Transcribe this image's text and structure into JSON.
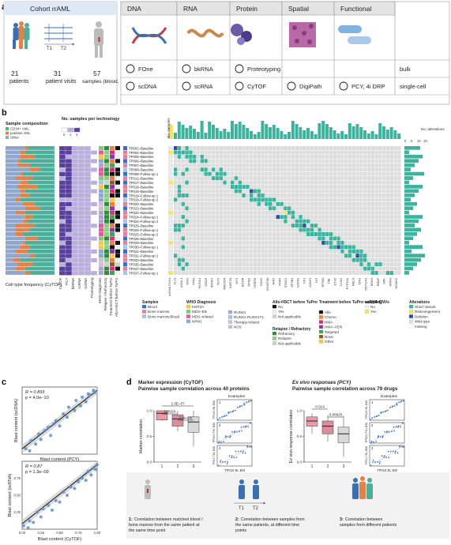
{
  "panels": {
    "a": "a",
    "b": "b",
    "c": "c",
    "d": "d"
  },
  "panel_a": {
    "cohort_title": "Cohort rrAML",
    "timepoints": [
      "T1",
      "T2"
    ],
    "stats": [
      {
        "value": "21",
        "label": "patients"
      },
      {
        "value": "31",
        "label": "patient visits"
      },
      {
        "value": "57",
        "label": "samples (blood, BM)"
      }
    ],
    "columns": [
      "DNA",
      "RNA",
      "Protein",
      "Spatial",
      "Functional"
    ],
    "bulk_row": [
      "FOne",
      "bkRNA",
      "Proteotyping"
    ],
    "bulk_label": "bulk",
    "sc_row": [
      "scDNA",
      "scRNA",
      "CyTOF",
      "DigiPath",
      "PCY, 4i DRP"
    ],
    "sc_label": "single-cell"
  },
  "panel_b": {
    "sample_comp_title": "Sample composition",
    "comp_legend": [
      {
        "label": "CD34+ AML",
        "color": "#4cae9b"
      },
      {
        "label": "putative AML",
        "color": "#e0834a"
      },
      {
        "label": "Other",
        "color": "#8fa6cf"
      }
    ],
    "nsamples_title": "No. samples per technology",
    "nsamples_scale": [
      "0",
      "1",
      "2"
    ],
    "cell_type_label": "Cell type frequency (CyTOF)",
    "tech_labels": [
      "CyTOF",
      "PCY",
      "bkRNA",
      "scRNA",
      "scDNA",
      "Proteotyping",
      "WHO Diagnosis",
      "Relapse / Refractory",
      "Treatment before TuPro",
      "Allo-HSCT before TuPro"
    ],
    "samples_axis": "No. samples",
    "alterations_axis": "No. alterations",
    "alt_ticks": [
      "0",
      "5",
      "10",
      "15"
    ],
    "rows": [
      "TP002–Baseline",
      "TP004–Baseline",
      "TP006–Baseline",
      "TP006–Baseline",
      "TP007–Baseline",
      "TP008–Baseline",
      "TP008–Follow-up 1",
      "TP012–Baseline",
      "TP017–Baseline",
      "TP018–Baseline",
      "TP019–Baseline",
      "TP019–Follow-up 1",
      "TP019–Follow-up 2",
      "TP020–Baseline",
      "TP023–Baseline",
      "TP024–Baseline",
      "TP024–Follow-up 1",
      "TP024–Follow-up 2",
      "TP025–Baseline",
      "TP025–Follow-up 1",
      "TP025–Follow-up 2",
      "TP028–Baseline",
      "TP029–Baseline",
      "TP030–Follow-up 1",
      "TP031–Baseline",
      "TP031–Follow-up 1",
      "TP033–Baseline",
      "TP035–Baseline",
      "TP037–Baseline",
      "TP037–Follow-up 1"
    ],
    "genes": [
      "FLT3",
      "ASXL1",
      "IDH2",
      "TP53",
      "NRAS",
      "RUNX1",
      "SRSF2",
      "TET2",
      "NPM1",
      "WT1",
      "MECOM",
      "KMT2A",
      "CBL",
      "PTPN11",
      "STAG2",
      "KIT",
      "BCOR",
      "EZH2",
      "IDH1",
      "U2AF1",
      "GATA2",
      "SF3B1",
      "CEBPA",
      "KRAS",
      "DNMT3A",
      "JAK2",
      "PHF6",
      "SMC3",
      "SETBP1",
      "ZRSR2",
      "NF1",
      "BCORL1",
      "ETV6",
      "CSF3R",
      "ATRX",
      "CALR",
      "KDM6A",
      "MPL",
      "EP300",
      "CREBBP",
      "ARID1A",
      "CUX1",
      "SMC1A",
      "RAD21",
      "NOTCH1",
      "PDGFRA",
      "MYC",
      "EGFR",
      "PIK3CA",
      "BRAF",
      "GNAS",
      "ABL1",
      "FBXW7",
      "HRAS",
      "STAT3",
      "RELN",
      "PTEN",
      "CHEK2",
      "NSD1",
      "KDM5C"
    ],
    "gene_label_sample": [
      "FLT3",
      "ASXL1",
      "IDH2",
      "TP53",
      "RUNX1",
      "NRAS",
      "SRSF2",
      "TET2",
      "MECOM",
      "KMT2A",
      "WT1",
      "BCOR",
      "NPM1",
      "CEBPA",
      "EZH2",
      "DNMT3A",
      "JAK2",
      "PHF6",
      "STAG2",
      "SF3B1",
      "GATA2",
      "NF1",
      "U2AF1",
      "KIT",
      "EP300",
      "CBL",
      "ETV6",
      "CUX1",
      "PTPN11",
      "RELN",
      "IDH1",
      "NOTCH1",
      "KRAS",
      "BRAF",
      "MPL",
      "HRAS",
      "KDM6C"
    ],
    "sc_cnv_label": "scDNA CNVs",
    "legends": [
      {
        "title": "Samples",
        "items": [
          {
            "label": "Blood",
            "color": "#3a6fc9"
          },
          {
            "label": "Bone marrow",
            "color": "#e3829b"
          },
          {
            "label": "Bone marrow,Blood",
            "color": "#a8c6e8"
          }
        ]
      },
      {
        "title": "WHO Diagnosis",
        "items": [
          {
            "label": "KMT2A",
            "color": "#f2c94c"
          },
          {
            "label": "MDS–EB",
            "color": "#7ec97a"
          },
          {
            "label": "MDS–related",
            "color": "#e15aa0"
          },
          {
            "label": "NPM1",
            "color": "#8aa8d8"
          }
        ]
      },
      {
        "title": "",
        "items": [
          {
            "label": "RUNX1",
            "color": "#b2a0d6"
          },
          {
            "label": "RUNX1-RUNX1T1",
            "color": "#9cc7e6"
          },
          {
            "label": "Therapy-related",
            "color": "#d9b8e0"
          },
          {
            "label": "NOS",
            "color": "#c3c3c3"
          }
        ]
      },
      {
        "title": "Allo-HSCT before TuPro",
        "items": [
          {
            "label": "No",
            "color": "#111111"
          },
          {
            "label": "Yes",
            "color": "#eeeeee"
          },
          {
            "label": "Not applicable",
            "color": "#cfcfcf"
          }
        ]
      },
      {
        "title": "Relapse / Refractory",
        "items": [
          {
            "label": "Refractory",
            "color": "#2f8a3a"
          },
          {
            "label": "Relapse",
            "color": "#8ccf7e"
          },
          {
            "label": "Not applicable",
            "color": "#cfcfcf"
          }
        ]
      },
      {
        "title": "Treatment before TuPro sampling",
        "items": [
          {
            "label": "Allo",
            "color": "#111111"
          },
          {
            "label": "Chemo",
            "color": "#e8843a"
          },
          {
            "label": "HMA",
            "color": "#d9307a"
          },
          {
            "label": "HMA–VEN",
            "color": "#7e3fa3"
          },
          {
            "label": "Targeted",
            "color": "#3aa655"
          },
          {
            "label": "None",
            "color": "#8b5a2b"
          },
          {
            "label": "Other",
            "color": "#f2c94c"
          }
        ]
      },
      {
        "title": "scDNA CNVs",
        "items": [
          {
            "label": "No",
            "color": "#eeeeee"
          },
          {
            "label": "Yes",
            "color": "#f2e66a"
          }
        ]
      },
      {
        "title": "Alterations",
        "items": [
          {
            "label": "Short Variant",
            "color": "#3db39e"
          },
          {
            "label": "Rearrangement",
            "color": "#f2e06a"
          },
          {
            "label": "Deletion",
            "color": "#2d4fa3"
          },
          {
            "label": "Wild-type",
            "color": "#dddddd"
          },
          {
            "label": "missing",
            "color": "#ffffff"
          }
        ]
      }
    ]
  },
  "panel_c": {
    "top": {
      "r_text": "R = 0.893",
      "p_text": "p = 4.0e–10",
      "xlabel": "Blast content (PCY)",
      "ylabel": "Blast content (scDNA)"
    },
    "bottom": {
      "r_text": "R = 0.87",
      "p_text": "p = 1.3e–09",
      "xlabel": "Blast content (CyTOF)",
      "ylabel": "Blast content (scRNA)",
      "ticks": [
        "0.00",
        "0.25",
        "0.50",
        "0.75",
        "1.00"
      ],
      "yticks": [
        "0.75",
        "0.50",
        "0.25"
      ]
    }
  },
  "panel_d": {
    "left": {
      "title1": "Marker expression (CyTOF)",
      "title2": "Pairwise sample correlation across 40 proteins",
      "ylabel": "Marker correlation",
      "yticks": [
        "1.0",
        "0.5",
        "0.0"
      ],
      "pvals": [
        "2.3E–07",
        "0.0029",
        "7.3e–05"
      ],
      "xcats": [
        "1",
        "2",
        "3"
      ],
      "examples": "Examples",
      "mini_labels": [
        "TP024 BL BM",
        "TP024 F01 BM",
        "TP017 BL BM"
      ],
      "mini_x": "TP024 BL BM"
    },
    "right": {
      "title1": "Ex vivo responses (PCY)",
      "title2": "Pairwise sample correlation across 79 drugs",
      "ylabel": "Ex vivo response correlation",
      "yticks": [
        "1.0",
        "0.5",
        "0.0"
      ],
      "pvals": [
        "0.014",
        "0.00025"
      ],
      "xcats": [
        "1",
        "2",
        "3"
      ],
      "examples": "Examples",
      "mini_labels": [
        "TP024 BL BM",
        "TP024 F01 BM",
        "TP017 BL BM"
      ],
      "mini_x": "TP024 BL BM"
    },
    "timeline": [
      "T1",
      "T2"
    ],
    "captions": [
      {
        "num": "1:",
        "text1": "Correlation between matched blood /",
        "text2": "bone marrow from the same patient at",
        "text3": "the same time point"
      },
      {
        "num": "2:",
        "text1": "Correlation between samples from",
        "text2": "the same patients, at different time",
        "text3": "points"
      },
      {
        "num": "3:",
        "text1": "Correlation between",
        "text2": "samples from different patients",
        "text3": ""
      }
    ]
  },
  "chart_data": [
    {
      "type": "scatter",
      "title": "",
      "xlabel": "Blast content (PCY)",
      "ylabel": "Blast content (scDNA)",
      "annotation": "R = 0.893, p = 4.0e–10",
      "x": [
        0.05,
        0.1,
        0.12,
        0.18,
        0.22,
        0.25,
        0.3,
        0.35,
        0.38,
        0.42,
        0.45,
        0.5,
        0.55,
        0.6,
        0.62,
        0.7,
        0.72,
        0.78,
        0.8,
        0.85,
        0.88,
        0.9,
        0.95,
        0.97
      ],
      "y": [
        0.08,
        0.05,
        0.2,
        0.15,
        0.3,
        0.22,
        0.35,
        0.4,
        0.28,
        0.45,
        0.5,
        0.42,
        0.6,
        0.55,
        0.7,
        0.65,
        0.8,
        0.72,
        0.85,
        0.78,
        0.9,
        0.88,
        0.95,
        0.92
      ]
    },
    {
      "type": "scatter",
      "title": "",
      "xlabel": "Blast content (CyTOF)",
      "ylabel": "Blast content (scRNA)",
      "annotation": "R = 0.87, p = 1.3e–09",
      "x": [
        0.02,
        0.08,
        0.1,
        0.15,
        0.2,
        0.25,
        0.28,
        0.35,
        0.4,
        0.45,
        0.5,
        0.55,
        0.6,
        0.65,
        0.7,
        0.75,
        0.8,
        0.85,
        0.88,
        0.92,
        0.95,
        0.98,
        1.0
      ],
      "y": [
        0.05,
        0.02,
        0.12,
        0.1,
        0.25,
        0.18,
        0.3,
        0.35,
        0.28,
        0.42,
        0.4,
        0.55,
        0.5,
        0.62,
        0.6,
        0.7,
        0.75,
        0.72,
        0.85,
        0.8,
        0.9,
        0.88,
        0.95
      ]
    },
    {
      "type": "box",
      "title": "Pairwise sample correlation across 40 proteins",
      "ylabel": "Marker correlation",
      "categories": [
        "1",
        "2",
        "3"
      ],
      "boxes": [
        {
          "q1": 0.82,
          "median": 0.95,
          "q3": 1.0,
          "min": 0.8,
          "max": 1.0
        },
        {
          "q1": 0.7,
          "median": 0.84,
          "q3": 0.92,
          "min": 0.6,
          "max": 1.0
        },
        {
          "q1": 0.58,
          "median": 0.78,
          "q3": 0.88,
          "min": 0.3,
          "max": 1.0
        }
      ]
    },
    {
      "type": "box",
      "title": "Pairwise sample correlation across 79 drugs",
      "ylabel": "Ex vivo response correlation",
      "categories": [
        "1",
        "2",
        "3"
      ],
      "boxes": [
        {
          "q1": 0.7,
          "median": 0.8,
          "q3": 0.88,
          "min": 0.55,
          "max": 0.95
        },
        {
          "q1": 0.55,
          "median": 0.7,
          "q3": 0.8,
          "min": 0.4,
          "max": 0.92
        },
        {
          "q1": 0.38,
          "median": 0.55,
          "q3": 0.68,
          "min": 0.1,
          "max": 0.9
        }
      ]
    }
  ]
}
